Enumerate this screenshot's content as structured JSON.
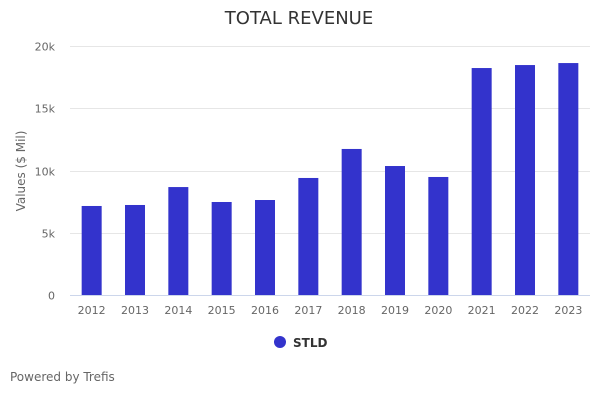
{
  "chart_data": {
    "type": "bar",
    "title": "TOTAL REVENUE",
    "xlabel": "",
    "ylabel": "Values ($ Mil)",
    "ylim": [
      0,
      20000
    ],
    "yticks": [
      0,
      5000,
      10000,
      15000,
      20000
    ],
    "ytick_labels": [
      "0",
      "5k",
      "10k",
      "15k",
      "20k"
    ],
    "grid": true,
    "categories": [
      "2012",
      "2013",
      "2014",
      "2015",
      "2016",
      "2017",
      "2018",
      "2019",
      "2020",
      "2021",
      "2022",
      "2023"
    ],
    "series": [
      {
        "name": "STLD",
        "color": "#3333cc",
        "values": [
          7150,
          7230,
          8670,
          7470,
          7630,
          9400,
          11730,
          10360,
          9480,
          18230,
          18470,
          18630
        ]
      }
    ],
    "legend": {
      "position": "bottom-center",
      "entries": [
        "STLD"
      ]
    }
  },
  "footer": {
    "credit": "Powered by Trefis"
  }
}
